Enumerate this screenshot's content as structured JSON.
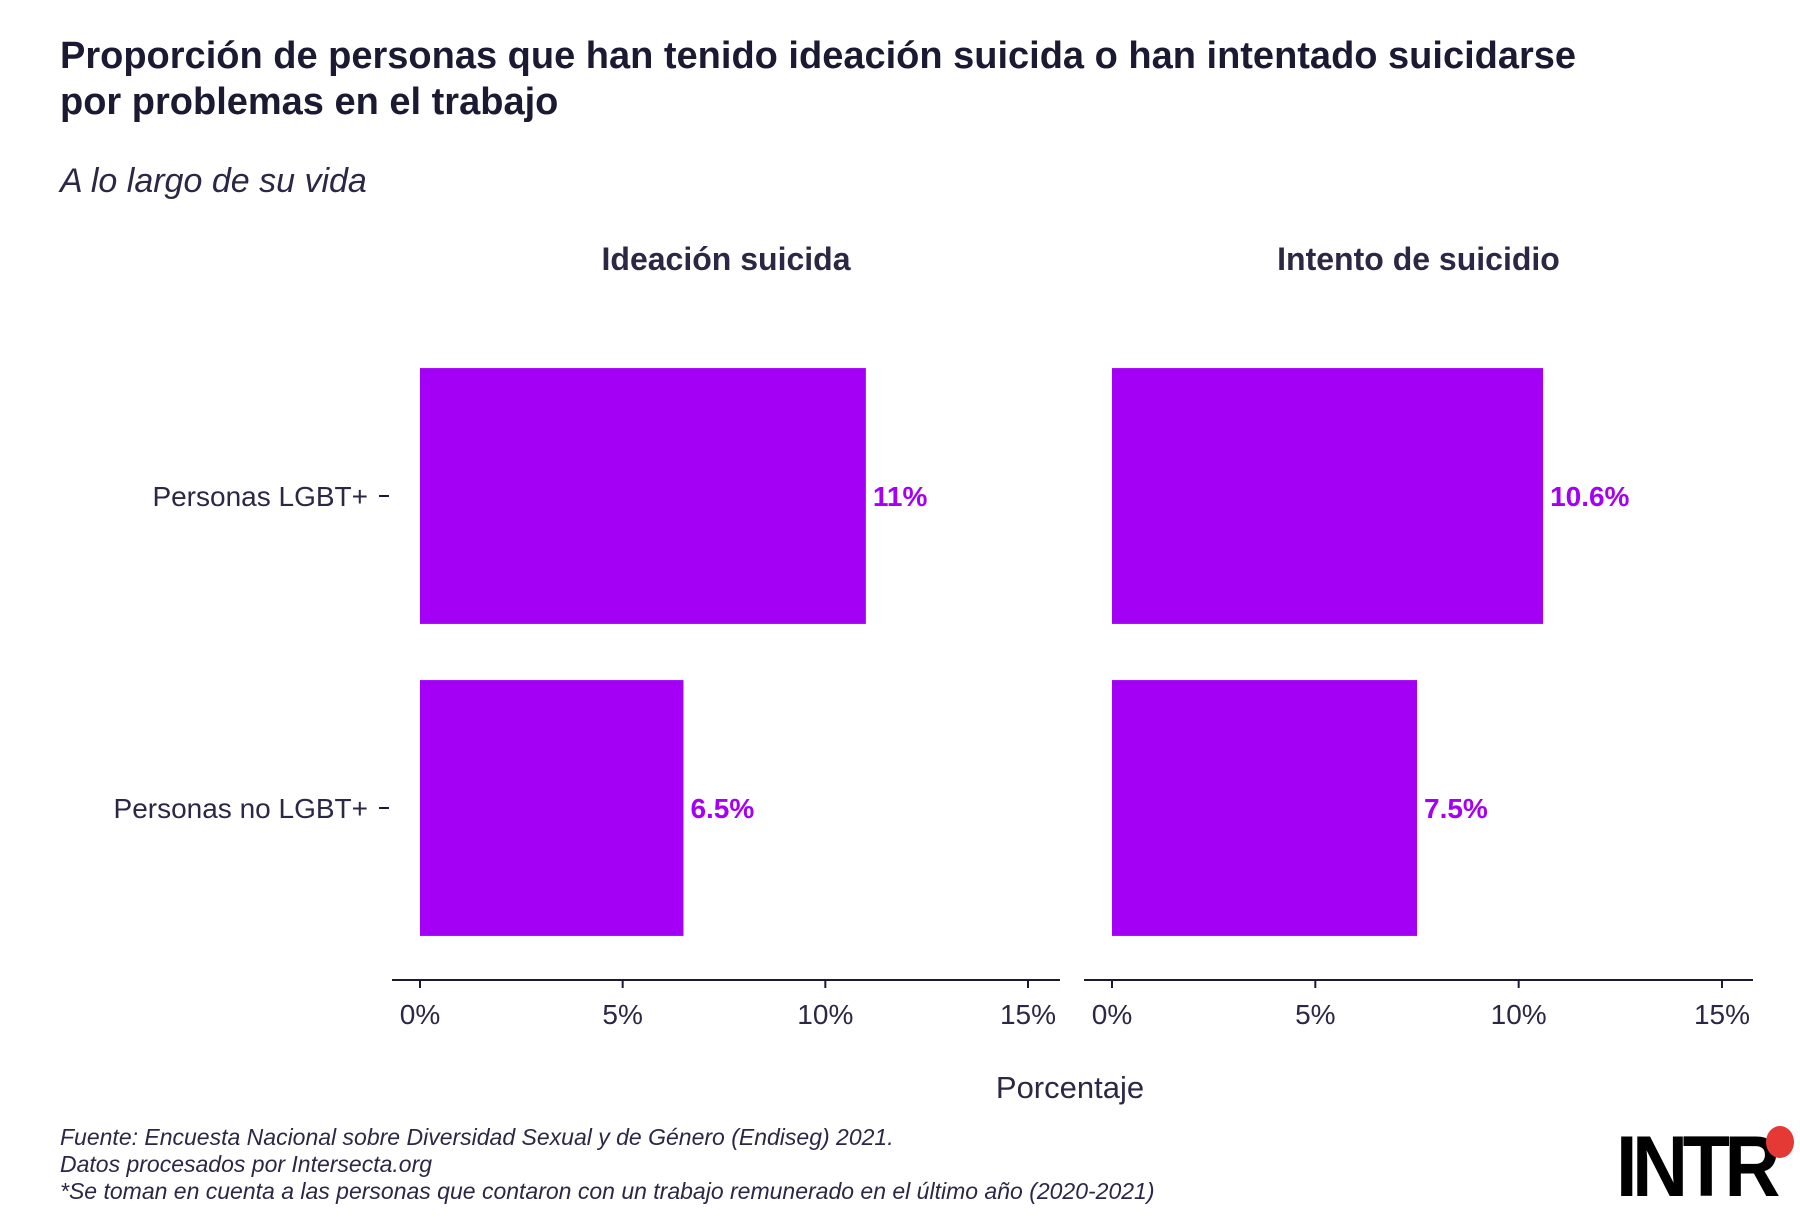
{
  "chart_data": {
    "type": "bar",
    "orientation": "horizontal",
    "title": "Proporción de personas que han tenido ideación suicida o han intentado suicidarse por problemas en el trabajo",
    "subtitle": "A lo largo de su vida",
    "xlabel": "Porcentaje",
    "xlim": [
      0,
      15
    ],
    "x_ticks": [
      0,
      5,
      10,
      15
    ],
    "x_tick_labels": [
      "0%",
      "5%",
      "10%",
      "15%"
    ],
    "categories": [
      "Personas LGBT+",
      "Personas no LGBT+"
    ],
    "bar_color": "#a400f5",
    "panels": [
      {
        "title": "Ideación suicida",
        "values": [
          11,
          6.5
        ],
        "labels": [
          "11%",
          "6.5%"
        ]
      },
      {
        "title": "Intento de suicidio",
        "values": [
          10.6,
          7.5
        ],
        "labels": [
          "10.6%",
          "7.5%"
        ]
      }
    ],
    "grid": false,
    "legend": "none"
  },
  "footer": {
    "source": "Fuente: Encuesta Nacional sobre Diversidad Sexual y de Género (Endiseg) 2021.",
    "processed": "Datos procesados por Intersecta.org",
    "note": "*Se toman en cuenta a las personas que contaron con un trabajo remunerado en el último año (2020-2021)"
  },
  "logo": {
    "text": "INTR",
    "dot_color": "#e53935"
  }
}
